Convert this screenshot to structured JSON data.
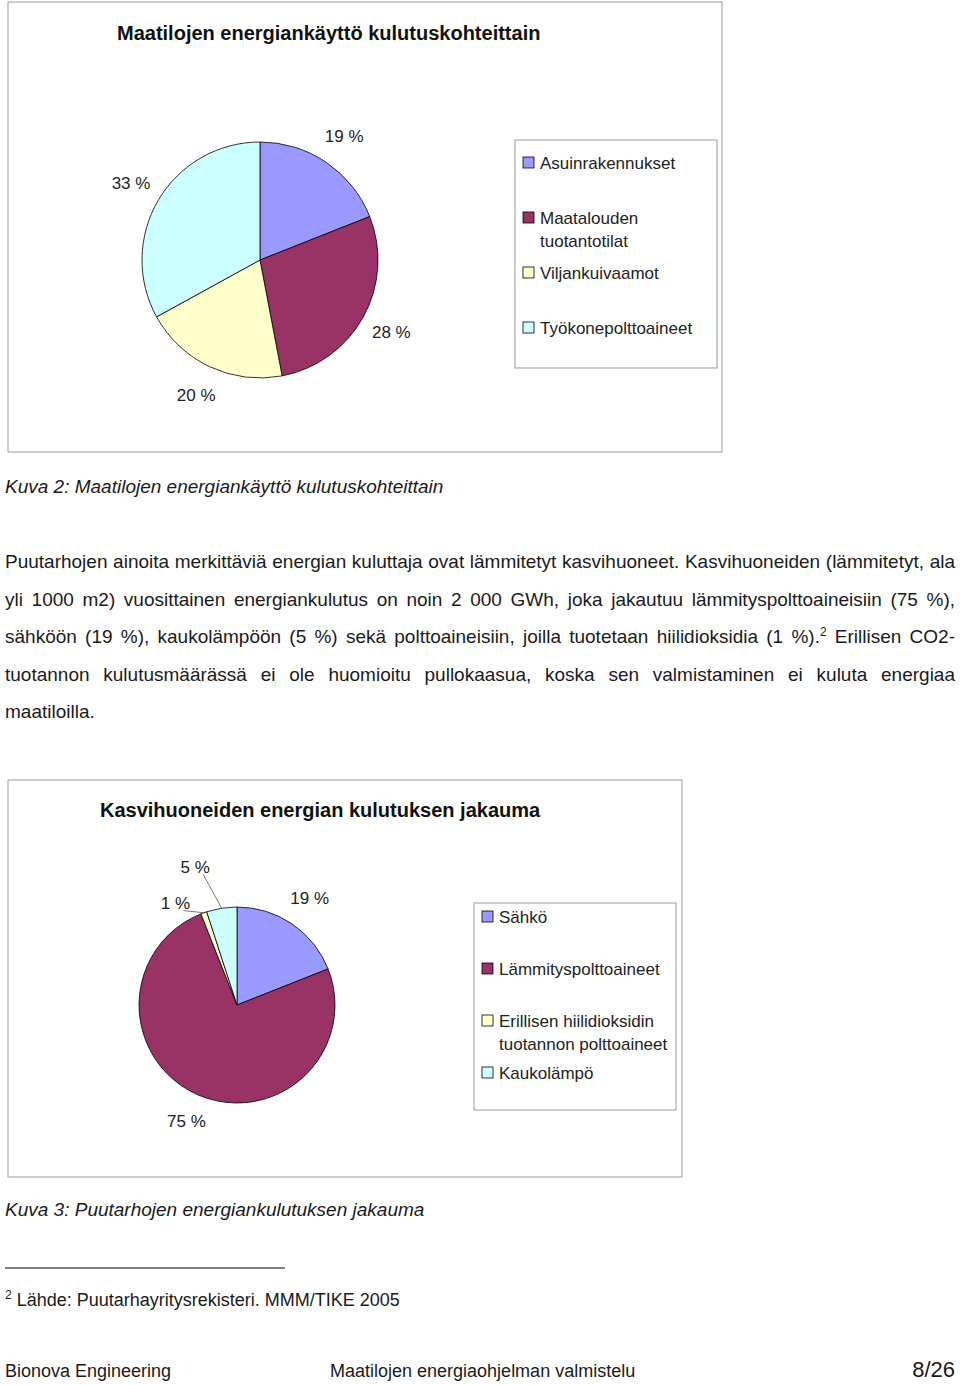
{
  "chart_data": [
    {
      "type": "pie",
      "title": "Maatilojen energiankäyttö kulutuskohteittain",
      "categories": [
        "Asuinrakennukset",
        "Maatalouden tuotantotilat",
        "Viljankuivaamot",
        "Työkonepolttoaineet"
      ],
      "values": [
        19,
        28,
        20,
        33
      ],
      "value_labels": [
        "19 %",
        "28 %",
        "20 %",
        "33 %"
      ],
      "colors": [
        "#9999ff",
        "#993366",
        "#ffffcc",
        "#ccffff"
      ],
      "data_labels": true,
      "legend": "right"
    },
    {
      "type": "pie",
      "title": "Kasvihuoneiden energian kulutuksen jakauma",
      "categories": [
        "Sähkö",
        "Lämmityspolttoaineet",
        "Erillisen hiilidioksidin tuotannon polttoaineet",
        "Kaukolämpö"
      ],
      "values": [
        19,
        75,
        1,
        5
      ],
      "value_labels": [
        "19 %",
        "75 %",
        "1 %",
        "5 %"
      ],
      "colors": [
        "#9999ff",
        "#993366",
        "#ffffcc",
        "#ccffff"
      ],
      "data_labels": true,
      "legend": "right"
    }
  ],
  "document": {
    "captions": [
      "Kuva 2: Maatilojen energiankäyttö kulutuskohteittain",
      "Kuva 3: Puutarhojen energiankulutuksen jakauma"
    ],
    "paragraph": {
      "text_before": "Puutarhojen ainoita merkittäviä energian kuluttaja ovat lämmitetyt kasvihuoneet. Kasvihuoneiden (lämmitetyt, ala yli 1000 m2) vuosittainen energiankulutus on noin 2 000 GWh, joka jakautuu lämmityspolttoaineisiin (75 %), sähköön (19 %), kaukolämpöön (5 %) sekä polttoaineisiin, joilla tuotetaan hiilidioksidia (1 %).",
      "footnote_ref": "2",
      "text_after": "Erillisen CO2-tuotannon kulutusmäärässä ei ole huomioitu pullokaasua, koska sen valmistaminen ei kuluta energiaa maatiloilla."
    },
    "footnote": {
      "marker": "2",
      "text": "Lähde: Puutarhayritysrekisteri. MMM/TIKE 2005"
    },
    "footer": {
      "left": "Bionova Engineering",
      "center": "Maatilojen energiaohjelman valmistelu",
      "right": "8/26"
    }
  }
}
